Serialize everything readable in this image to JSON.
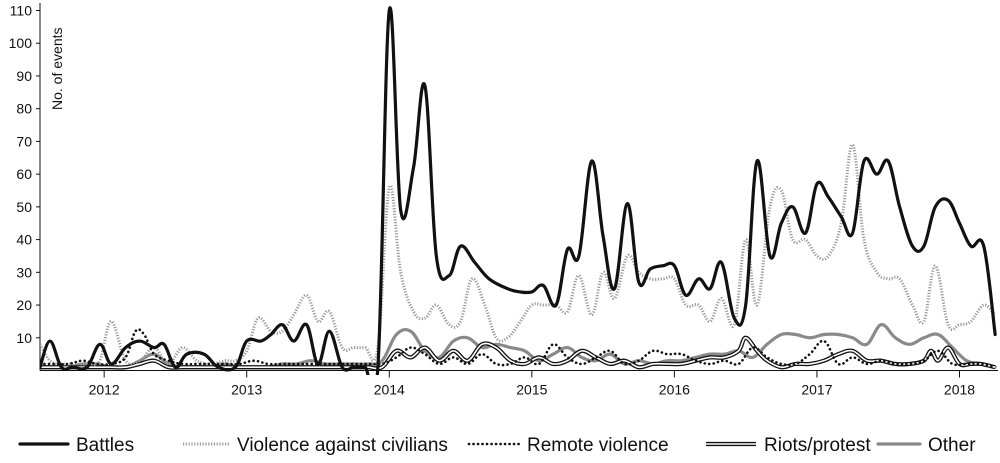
{
  "chart_data": {
    "type": "line",
    "title": "",
    "xlabel": "",
    "ylabel": "No. of events",
    "ylim": [
      0,
      110
    ],
    "yticks": [
      10,
      20,
      30,
      40,
      50,
      60,
      70,
      80,
      90,
      100,
      110
    ],
    "xlim": [
      2011.55,
      2018.27
    ],
    "xticks": [
      2012,
      2013,
      2014,
      2015,
      2016,
      2017,
      2018
    ],
    "xtick_labels": [
      "2012",
      "2013",
      "2014",
      "2015",
      "2016",
      "2017",
      "2018"
    ],
    "grid": false,
    "legend_position": "bottom",
    "series": [
      {
        "name": "Battles",
        "style": "solid-thick",
        "color": "#111111",
        "x": [
          2011.55,
          2011.62,
          2011.7,
          2011.78,
          2011.88,
          2011.97,
          2012.05,
          2012.15,
          2012.25,
          2012.35,
          2012.42,
          2012.5,
          2012.58,
          2012.7,
          2012.8,
          2012.92,
          2013.0,
          2013.1,
          2013.17,
          2013.25,
          2013.33,
          2013.42,
          2013.5,
          2013.58,
          2013.67,
          2013.75,
          2013.83,
          2013.92,
          2014.0,
          2014.08,
          2014.17,
          2014.25,
          2014.33,
          2014.42,
          2014.5,
          2014.6,
          2014.7,
          2014.83,
          2014.92,
          2015.0,
          2015.08,
          2015.17,
          2015.25,
          2015.33,
          2015.42,
          2015.5,
          2015.58,
          2015.67,
          2015.75,
          2015.83,
          2015.92,
          2016.0,
          2016.08,
          2016.17,
          2016.25,
          2016.33,
          2016.42,
          2016.5,
          2016.58,
          2016.67,
          2016.75,
          2016.83,
          2016.92,
          2017.0,
          2017.08,
          2017.17,
          2017.25,
          2017.33,
          2017.42,
          2017.5,
          2017.58,
          2017.67,
          2017.75,
          2017.83,
          2017.92,
          2018.0,
          2018.08,
          2018.17,
          2018.25
        ],
        "values": [
          1,
          9,
          1,
          1,
          1,
          8,
          2,
          7,
          9,
          7,
          8,
          1,
          5,
          5,
          1,
          1,
          9,
          9,
          11,
          14,
          9,
          14,
          2,
          12,
          1,
          1,
          1,
          1,
          110,
          49,
          62,
          87,
          35,
          29,
          38,
          33,
          28,
          25,
          24,
          24,
          26,
          20,
          37,
          35,
          64,
          41,
          25,
          51,
          27,
          31,
          32,
          32,
          23,
          28,
          25,
          33,
          16,
          20,
          64,
          35,
          45,
          50,
          42,
          57,
          53,
          47,
          42,
          64,
          60,
          64,
          50,
          38,
          38,
          50,
          52,
          45,
          38,
          38,
          11
        ]
      },
      {
        "name": "Violence against civilians",
        "style": "dotted-light",
        "color": "#9a9a9a",
        "x": [
          2011.55,
          2011.62,
          2011.7,
          2011.8,
          2011.9,
          2011.97,
          2012.05,
          2012.15,
          2012.25,
          2012.35,
          2012.45,
          2012.55,
          2012.65,
          2012.75,
          2012.85,
          2012.92,
          2013.0,
          2013.08,
          2013.17,
          2013.25,
          2013.33,
          2013.42,
          2013.5,
          2013.58,
          2013.67,
          2013.75,
          2013.83,
          2013.92,
          2014.0,
          2014.08,
          2014.17,
          2014.25,
          2014.33,
          2014.42,
          2014.5,
          2014.58,
          2014.67,
          2014.75,
          2014.83,
          2014.92,
          2015.0,
          2015.08,
          2015.17,
          2015.25,
          2015.33,
          2015.42,
          2015.5,
          2015.58,
          2015.67,
          2015.75,
          2015.83,
          2015.92,
          2016.0,
          2016.08,
          2016.17,
          2016.25,
          2016.33,
          2016.42,
          2016.5,
          2016.58,
          2016.67,
          2016.75,
          2016.83,
          2016.92,
          2017.0,
          2017.08,
          2017.17,
          2017.25,
          2017.33,
          2017.42,
          2017.5,
          2017.58,
          2017.67,
          2017.75,
          2017.83,
          2017.92,
          2018.0,
          2018.08,
          2018.17,
          2018.25
        ],
        "values": [
          8,
          3,
          2,
          2,
          2,
          3,
          15,
          3,
          3,
          7,
          2,
          7,
          3,
          2,
          3,
          3,
          6,
          16,
          12,
          12,
          17,
          23,
          15,
          18,
          7,
          7,
          7,
          7,
          56,
          30,
          18,
          16,
          20,
          14,
          15,
          28,
          20,
          10,
          10,
          15,
          20,
          20,
          20,
          18,
          29,
          17,
          30,
          22,
          35,
          30,
          28,
          28,
          28,
          20,
          20,
          15,
          22,
          14,
          40,
          20,
          50,
          55,
          40,
          40,
          35,
          35,
          45,
          69,
          40,
          30,
          28,
          28,
          20,
          15,
          32,
          14,
          14,
          15,
          20,
          17
        ]
      },
      {
        "name": "Remote violence",
        "style": "dotted",
        "color": "#111111",
        "x": [
          2011.55,
          2011.65,
          2011.75,
          2011.85,
          2011.95,
          2012.05,
          2012.15,
          2012.22,
          2012.28,
          2012.35,
          2012.45,
          2012.55,
          2012.65,
          2012.75,
          2012.85,
          2012.95,
          2013.05,
          2013.15,
          2013.25,
          2013.35,
          2013.45,
          2013.55,
          2013.65,
          2013.75,
          2013.85,
          2013.95,
          2014.05,
          2014.15,
          2014.25,
          2014.35,
          2014.45,
          2014.55,
          2014.65,
          2014.75,
          2014.85,
          2014.95,
          2015.05,
          2015.15,
          2015.25,
          2015.35,
          2015.45,
          2015.55,
          2015.65,
          2015.75,
          2015.85,
          2015.95,
          2016.05,
          2016.15,
          2016.25,
          2016.35,
          2016.45,
          2016.55,
          2016.65,
          2016.75,
          2016.85,
          2016.95,
          2017.05,
          2017.15,
          2017.25,
          2017.35,
          2017.45,
          2017.55,
          2017.65,
          2017.75,
          2017.85,
          2017.95,
          2018.05,
          2018.15,
          2018.25
        ],
        "values": [
          2,
          2,
          2,
          3,
          2,
          2,
          4,
          12,
          11,
          5,
          3,
          2,
          2,
          2,
          2,
          2,
          3,
          2,
          2,
          2,
          2,
          2,
          2,
          2,
          2,
          2,
          4,
          7,
          5,
          2,
          4,
          2,
          5,
          2,
          2,
          4,
          2,
          8,
          4,
          2,
          4,
          6,
          2,
          3,
          6,
          5,
          5,
          3,
          2,
          3,
          2,
          7,
          4,
          2,
          2,
          5,
          9,
          2,
          4,
          2,
          3,
          2,
          2,
          3,
          6,
          2,
          2,
          2,
          1
        ]
      },
      {
        "name": "Riots/protest",
        "style": "double",
        "color": "#111111",
        "x": [
          2011.55,
          2011.65,
          2011.75,
          2011.85,
          2011.95,
          2012.05,
          2012.15,
          2012.25,
          2012.35,
          2012.45,
          2012.55,
          2012.65,
          2012.75,
          2012.85,
          2012.95,
          2013.05,
          2013.15,
          2013.25,
          2013.35,
          2013.45,
          2013.55,
          2013.65,
          2013.75,
          2013.85,
          2013.95,
          2014.05,
          2014.15,
          2014.25,
          2014.35,
          2014.45,
          2014.55,
          2014.65,
          2014.75,
          2014.85,
          2014.95,
          2015.05,
          2015.15,
          2015.25,
          2015.35,
          2015.45,
          2015.55,
          2015.65,
          2015.75,
          2015.85,
          2015.95,
          2016.05,
          2016.15,
          2016.25,
          2016.35,
          2016.45,
          2016.5,
          2016.58,
          2016.65,
          2016.75,
          2016.85,
          2016.95,
          2017.05,
          2017.15,
          2017.25,
          2017.35,
          2017.45,
          2017.55,
          2017.65,
          2017.75,
          2017.8,
          2017.85,
          2017.92,
          2018.0,
          2018.08,
          2018.15,
          2018.25
        ],
        "values": [
          1,
          1,
          1,
          1,
          1,
          1,
          1,
          2,
          3,
          1,
          1,
          1,
          1,
          1,
          1,
          1,
          1,
          1,
          1,
          1,
          1,
          1,
          1,
          1,
          1,
          6,
          4,
          7,
          3,
          6,
          3,
          8,
          7,
          3,
          2,
          4,
          2,
          3,
          6,
          4,
          2,
          3,
          1,
          2,
          2,
          2,
          3,
          4,
          4,
          6,
          10,
          6,
          3,
          1,
          2,
          2,
          3,
          5,
          6,
          3,
          3,
          2,
          2,
          3,
          6,
          3,
          7,
          2,
          2,
          2,
          1
        ]
      },
      {
        "name": "Other",
        "style": "solid-gray",
        "color": "#8a8a8a",
        "x": [
          2011.55,
          2011.65,
          2011.75,
          2011.85,
          2011.95,
          2012.05,
          2012.15,
          2012.25,
          2012.35,
          2012.45,
          2012.55,
          2012.65,
          2012.75,
          2012.85,
          2012.95,
          2013.05,
          2013.15,
          2013.25,
          2013.35,
          2013.45,
          2013.55,
          2013.65,
          2013.75,
          2013.85,
          2013.95,
          2014.05,
          2014.15,
          2014.25,
          2014.35,
          2014.45,
          2014.55,
          2014.65,
          2014.75,
          2014.85,
          2014.95,
          2015.05,
          2015.15,
          2015.25,
          2015.35,
          2015.45,
          2015.55,
          2015.65,
          2015.75,
          2015.85,
          2015.95,
          2016.05,
          2016.15,
          2016.25,
          2016.35,
          2016.45,
          2016.55,
          2016.65,
          2016.75,
          2016.85,
          2016.95,
          2017.05,
          2017.15,
          2017.25,
          2017.35,
          2017.45,
          2017.55,
          2017.65,
          2017.75,
          2017.85,
          2017.95,
          2018.05,
          2018.15,
          2018.25
        ],
        "values": [
          1,
          1,
          1,
          2,
          2,
          1,
          1,
          3,
          5,
          2,
          1,
          1,
          1,
          2,
          1,
          1,
          1,
          2,
          2,
          3,
          2,
          2,
          2,
          2,
          3,
          11,
          12,
          6,
          4,
          9,
          10,
          7,
          8,
          7,
          6,
          3,
          5,
          7,
          4,
          3,
          5,
          2,
          3,
          2,
          3,
          3,
          4,
          5,
          5,
          6,
          4,
          8,
          11,
          11,
          10,
          11,
          11,
          10,
          8,
          14,
          10,
          8,
          10,
          11,
          7,
          3,
          2,
          1
        ]
      }
    ]
  }
}
